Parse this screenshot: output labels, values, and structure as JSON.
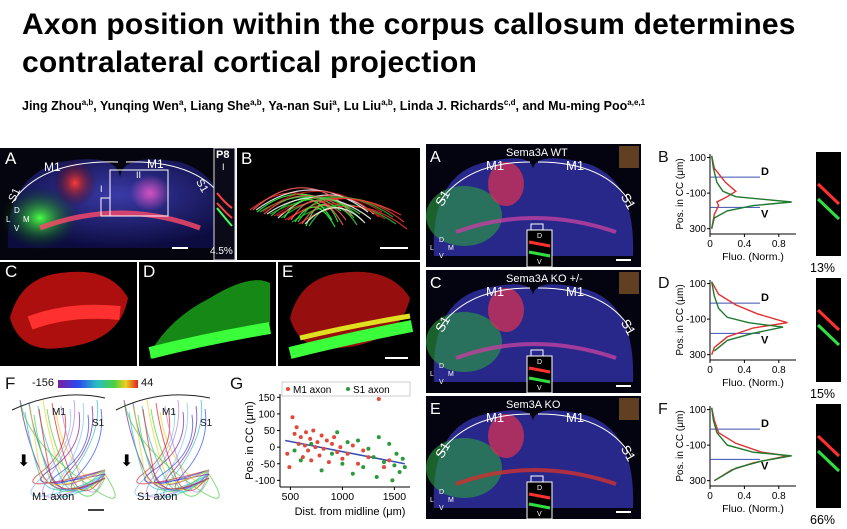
{
  "header": {
    "title_line1": "Axon position within the corpus callosum determines",
    "title_line2": "contralateral cortical projection",
    "authors": [
      {
        "name": "Jing Zhou",
        "sup": "a,b",
        "sep": ", "
      },
      {
        "name": "Yunqing Wen",
        "sup": "a",
        "sep": ", "
      },
      {
        "name": "Liang She",
        "sup": "a,b",
        "sep": ", "
      },
      {
        "name": "Ya-nan Sui",
        "sup": "a",
        "sep": ", "
      },
      {
        "name": "Lu Liu",
        "sup": "a,b",
        "sep": ", "
      },
      {
        "name": "Linda J. Richards",
        "sup": "c,d",
        "sep": ", and "
      },
      {
        "name": "Mu-ming Poo",
        "sup": "a,e,1",
        "sep": ""
      }
    ]
  },
  "left_figure": {
    "panelA": {
      "label": "A",
      "m1_left": "M1",
      "m1_right": "M1",
      "s1_left": "S1",
      "s1_right": "S1",
      "roman_i": "I",
      "roman_ii": "II",
      "compass": {
        "d": "D",
        "l": "L",
        "m": "M",
        "v": "V"
      },
      "inset_label": "P8",
      "inset_roman": "I",
      "inset_pct": "4.5%"
    },
    "panelB": {
      "label": "B"
    },
    "panelC": {
      "label": "C"
    },
    "panelD": {
      "label": "D"
    },
    "panelE": {
      "label": "E"
    },
    "panelF": {
      "label": "F",
      "scale_min": "-156",
      "scale_max": "44",
      "m1_a": "M1",
      "s1_a": "S1",
      "m1_b": "M1",
      "s1_b": "S1",
      "caption_a": "M1 axon",
      "caption_b": "S1 axon"
    },
    "panelG": {
      "label": "G",
      "legend_m1": "M1 axon",
      "legend_s1": "S1 axon",
      "colors": {
        "m1": "#e04a3a",
        "s1": "#2a9a3a",
        "fit": "#3a4fb0"
      }
    }
  },
  "right_figure": {
    "rows": [
      {
        "label": "A",
        "title": "Sema3A WT",
        "m1a": "M1",
        "m1b": "M1",
        "s1a": "S1",
        "s1b": "S1",
        "d": "D",
        "v": "V",
        "profile_label": "B",
        "pct": "13%"
      },
      {
        "label": "C",
        "title": "Sema3A KO +/-",
        "m1a": "M1",
        "m1b": "M1",
        "s1a": "S1",
        "s1b": "S1",
        "d": "D",
        "v": "V",
        "profile_label": "D",
        "pct": "15%"
      },
      {
        "label": "E",
        "title": "Sem3A KO",
        "m1a": "M1",
        "m1b": "M1",
        "s1a": "S1",
        "s1b": "S1",
        "d": "D",
        "v": "V",
        "profile_label": "F",
        "pct": "66%"
      }
    ],
    "compass": {
      "d": "D",
      "l": "L",
      "m": "M",
      "v": "V"
    },
    "profile_ylabel": "Pos. in CC (μm)",
    "profile_xlabel": "Fluo. (Norm.)",
    "profile_yticks": [
      "100",
      "-100",
      "300"
    ],
    "profile_xticks": [
      "0",
      "0.4",
      "0.8"
    ]
  },
  "chart_data": [
    {
      "type": "scatter",
      "title": "",
      "xlabel": "Dist. from midline (μm)",
      "ylabel": "Pos. in CC (μm)",
      "xlim": [
        400,
        1650
      ],
      "ylim": [
        -120,
        160
      ],
      "xticks": [
        500,
        1000,
        1500
      ],
      "yticks": [
        150,
        100,
        50,
        0,
        -50,
        -100
      ],
      "legend": "top",
      "series": [
        {
          "name": "M1 axon",
          "color": "#e04a3a",
          "points": [
            [
              470,
              -20
            ],
            [
              490,
              -60
            ],
            [
              520,
              90
            ],
            [
              540,
              40
            ],
            [
              560,
              60
            ],
            [
              580,
              10
            ],
            [
              600,
              30
            ],
            [
              620,
              -30
            ],
            [
              640,
              5
            ],
            [
              650,
              45
            ],
            [
              670,
              -10
            ],
            [
              690,
              25
            ],
            [
              700,
              -40
            ],
            [
              720,
              50
            ],
            [
              740,
              0
            ],
            [
              760,
              15
            ],
            [
              780,
              -25
            ],
            [
              800,
              35
            ],
            [
              820,
              -5
            ],
            [
              850,
              20
            ],
            [
              870,
              -45
            ],
            [
              900,
              10
            ],
            [
              920,
              30
            ],
            [
              950,
              -15
            ],
            [
              980,
              0
            ],
            [
              1000,
              -35
            ],
            [
              1050,
              -20
            ],
            [
              1100,
              5
            ],
            [
              1150,
              -50
            ],
            [
              1200,
              -10
            ],
            [
              1250,
              -30
            ],
            [
              1350,
              145
            ],
            [
              1400,
              -60
            ],
            [
              1450,
              -40
            ]
          ]
        },
        {
          "name": "S1 axon",
          "color": "#2a9a3a",
          "points": [
            [
              540,
              -10
            ],
            [
              600,
              -40
            ],
            [
              700,
              10
            ],
            [
              800,
              -70
            ],
            [
              900,
              -20
            ],
            [
              950,
              45
            ],
            [
              1000,
              -50
            ],
            [
              1050,
              15
            ],
            [
              1100,
              -80
            ],
            [
              1150,
              20
            ],
            [
              1200,
              -60
            ],
            [
              1250,
              -5
            ],
            [
              1300,
              -30
            ],
            [
              1330,
              -90
            ],
            [
              1350,
              30
            ],
            [
              1400,
              -45
            ],
            [
              1450,
              10
            ],
            [
              1480,
              -100
            ],
            [
              1500,
              -55
            ],
            [
              1520,
              -20
            ],
            [
              1550,
              -75
            ],
            [
              1580,
              -35
            ],
            [
              1600,
              -60
            ]
          ]
        },
        {
          "name": "",
          "color": "#3a4fb0",
          "points": [
            [
              450,
              20
            ],
            [
              1600,
              -50
            ]
          ]
        }
      ]
    },
    {
      "type": "line",
      "title": "",
      "xlabel": "Fluo. (Norm.)",
      "ylabel": "Pos. in CC (μm)",
      "xlim": [
        0,
        1
      ],
      "ylim": [
        -330,
        120
      ],
      "series": [
        {
          "name": "",
          "color": "#e03030",
          "points": [
            [
              0.02,
              110
            ],
            [
              0.05,
              40
            ],
            [
              0.18,
              -40
            ],
            [
              0.3,
              -90
            ],
            [
              0.2,
              -120
            ],
            [
              0.08,
              -150
            ],
            [
              0.1,
              -170
            ],
            [
              0.05,
              -220
            ],
            [
              0.02,
              -300
            ]
          ]
        },
        {
          "name": "",
          "color": "#1e7a2e",
          "points": [
            [
              0.02,
              110
            ],
            [
              0.04,
              40
            ],
            [
              0.08,
              -40
            ],
            [
              0.15,
              -90
            ],
            [
              0.3,
              -120
            ],
            [
              0.95,
              -150
            ],
            [
              0.5,
              -170
            ],
            [
              0.2,
              -200
            ],
            [
              0.05,
              -240
            ],
            [
              0.02,
              -300
            ]
          ]
        }
      ]
    },
    {
      "type": "line",
      "title": "",
      "xlabel": "Fluo. (Norm.)",
      "ylabel": "Pos. in CC (μm)",
      "xlim": [
        0,
        1
      ],
      "ylim": [
        -330,
        120
      ],
      "series": [
        {
          "name": "",
          "color": "#e03030",
          "points": [
            [
              0.02,
              110
            ],
            [
              0.1,
              40
            ],
            [
              0.3,
              -20
            ],
            [
              0.55,
              -70
            ],
            [
              0.9,
              -120
            ],
            [
              0.5,
              -150
            ],
            [
              0.2,
              -200
            ],
            [
              0.05,
              -260
            ],
            [
              0.02,
              -300
            ]
          ]
        },
        {
          "name": "",
          "color": "#1e7a2e",
          "points": [
            [
              0.02,
              110
            ],
            [
              0.05,
              30
            ],
            [
              0.1,
              -40
            ],
            [
              0.2,
              -90
            ],
            [
              0.45,
              -120
            ],
            [
              0.85,
              -145
            ],
            [
              0.5,
              -180
            ],
            [
              0.2,
              -220
            ],
            [
              0.05,
              -280
            ]
          ]
        }
      ]
    },
    {
      "type": "line",
      "title": "",
      "xlabel": "Fluo. (Norm.)",
      "ylabel": "Pos. in CC (μm)",
      "xlim": [
        0,
        1
      ],
      "ylim": [
        -330,
        120
      ],
      "series": [
        {
          "name": "",
          "color": "#e03030",
          "points": [
            [
              0.02,
              110
            ],
            [
              0.05,
              40
            ],
            [
              0.1,
              -30
            ],
            [
              0.3,
              -90
            ],
            [
              0.6,
              -140
            ],
            [
              0.9,
              -160
            ],
            [
              0.5,
              -200
            ],
            [
              0.25,
              -240
            ],
            [
              0.05,
              -300
            ]
          ]
        },
        {
          "name": "",
          "color": "#1e7a2e",
          "points": [
            [
              0.02,
              110
            ],
            [
              0.04,
              40
            ],
            [
              0.08,
              -30
            ],
            [
              0.2,
              -100
            ],
            [
              0.5,
              -140
            ],
            [
              0.95,
              -160
            ],
            [
              0.6,
              -190
            ],
            [
              0.3,
              -230
            ],
            [
              0.05,
              -300
            ]
          ]
        }
      ]
    }
  ]
}
